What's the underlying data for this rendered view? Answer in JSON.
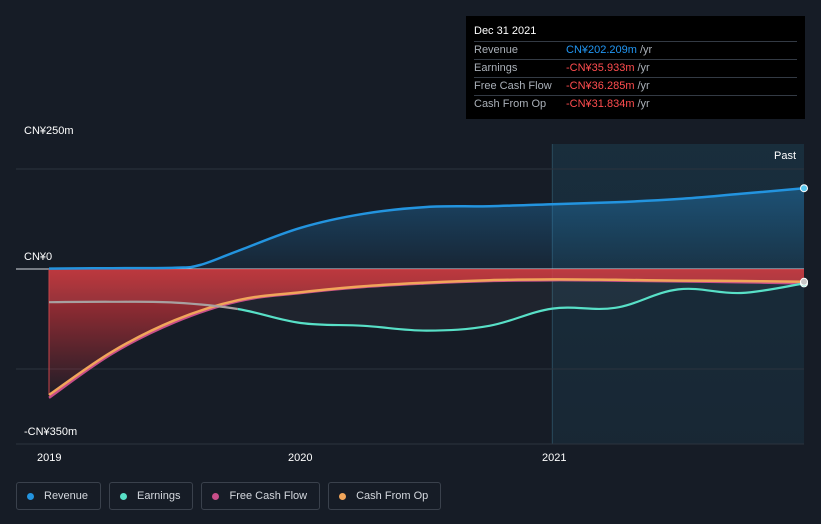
{
  "tooltip": {
    "date": "Dec 31 2021",
    "rows": [
      {
        "label": "Revenue",
        "value": "CN¥202.209m",
        "unit": "/yr",
        "color": "#2196f3"
      },
      {
        "label": "Earnings",
        "value": "-CN¥35.933m",
        "unit": "/yr",
        "color": "#ff4d4f"
      },
      {
        "label": "Free Cash Flow",
        "value": "-CN¥36.285m",
        "unit": "/yr",
        "color": "#ff4d4f"
      },
      {
        "label": "Cash From Op",
        "value": "-CN¥31.834m",
        "unit": "/yr",
        "color": "#ff4d4f"
      }
    ]
  },
  "past_label": "Past",
  "legend": [
    {
      "label": "Revenue",
      "color": "#2394df"
    },
    {
      "label": "Earnings",
      "color": "#58e0c7"
    },
    {
      "label": "Free Cash Flow",
      "color": "#c84e89"
    },
    {
      "label": "Cash From Op",
      "color": "#f1a55a"
    }
  ],
  "chart_data": {
    "type": "line",
    "currency": "CN¥",
    "ytick_labels": [
      "CN¥250m",
      "CN¥0",
      "-CN¥350m"
    ],
    "ylim": [
      -350,
      250
    ],
    "xtick_labels": [
      "2019",
      "2020",
      "2021"
    ],
    "xlim": [
      2019.0,
      2022.0
    ],
    "past_start": 2021.0,
    "series": [
      {
        "name": "Revenue",
        "color": "#2394df",
        "x": [
          2019.0,
          2019.25,
          2019.5,
          2019.6,
          2019.75,
          2020.0,
          2020.25,
          2020.5,
          2020.75,
          2021.0,
          2021.25,
          2021.5,
          2021.75,
          2022.0
        ],
        "y": [
          1,
          2,
          3,
          10,
          45,
          103,
          138,
          155,
          157,
          162,
          167,
          175,
          188,
          202
        ]
      },
      {
        "name": "Earnings",
        "color": "#58e0c7",
        "x": [
          2019.0,
          2019.25,
          2019.5,
          2019.75,
          2020.0,
          2020.25,
          2020.5,
          2020.75,
          2021.0,
          2021.25,
          2021.5,
          2021.75,
          2022.0
        ],
        "y": [
          -83,
          -82,
          -84,
          -100,
          -135,
          -142,
          -154,
          -142,
          -99,
          -97,
          -51,
          -60,
          -36
        ]
      },
      {
        "name": "Free Cash Flow",
        "color": "#c84e89",
        "x": [
          2019.0,
          2019.25,
          2019.5,
          2019.75,
          2020.0,
          2020.25,
          2020.5,
          2020.75,
          2021.0,
          2021.25,
          2021.5,
          2021.75,
          2022.0
        ],
        "y": [
          -322,
          -212,
          -133,
          -81,
          -60,
          -45,
          -36,
          -30,
          -28,
          -29,
          -31,
          -33,
          -36
        ]
      },
      {
        "name": "Cash From Op",
        "color": "#f1a55a",
        "x": [
          2019.0,
          2019.25,
          2019.5,
          2019.75,
          2020.0,
          2020.25,
          2020.5,
          2020.75,
          2021.0,
          2021.25,
          2021.5,
          2021.75,
          2022.0
        ],
        "y": [
          -315,
          -207,
          -128,
          -78,
          -58,
          -43,
          -34,
          -28,
          -26,
          -27,
          -29,
          -30,
          -32
        ]
      }
    ],
    "grid": true,
    "legend_position": "bottom-left"
  }
}
